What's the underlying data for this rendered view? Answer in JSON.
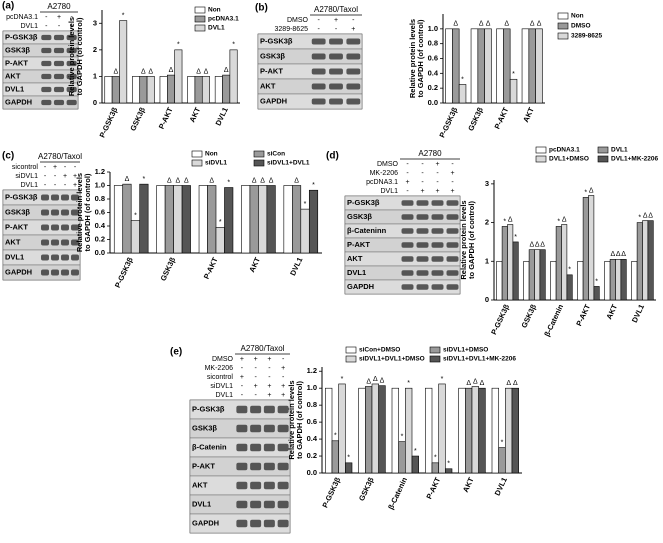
{
  "chart_data": [
    {
      "type": "bar",
      "panel": "(a)",
      "ylabel": [
        "Relative protein levels",
        "to GAPDH (of control)"
      ],
      "categories": [
        "P-GSK3β",
        "GSK3β",
        "P-AKT",
        "AKT",
        "DVL1"
      ],
      "series": [
        {
          "name": "Non",
          "color": "#ffffff",
          "values": [
            1,
            1,
            1,
            1,
            1
          ]
        },
        {
          "name": "pcDNA3.1",
          "color": "#9a9a9a",
          "values": [
            1,
            1,
            1.05,
            1,
            1.05
          ],
          "marks": [
            "Δ",
            "Δ",
            "Δ",
            "Δ",
            "Δ"
          ]
        },
        {
          "name": "DVL1",
          "color": "#d9d9d9",
          "values": [
            3.1,
            1,
            2,
            1,
            2
          ],
          "marks": [
            "*",
            "Δ",
            "*",
            "Δ",
            "*"
          ]
        }
      ],
      "ylim": [
        0,
        3.5
      ],
      "yticks": [
        0,
        1,
        2,
        3
      ]
    },
    {
      "type": "bar",
      "panel": "(b)",
      "ylabel": [
        "Relative protein levels",
        "to GAPDH (of control)"
      ],
      "categories": [
        "P-GSK3β",
        "GSK3β",
        "P-AKT",
        "AKT"
      ],
      "series": [
        {
          "name": "Non",
          "color": "#ffffff",
          "values": [
            1,
            1,
            1,
            1
          ]
        },
        {
          "name": "DMSO",
          "color": "#9a9a9a",
          "values": [
            1,
            1,
            1,
            1
          ],
          "marks": [
            "Δ",
            "Δ",
            "Δ",
            "Δ"
          ]
        },
        {
          "name": "3289-8625",
          "color": "#d9d9d9",
          "values": [
            0.25,
            1,
            0.32,
            1
          ],
          "marks": [
            "*",
            "Δ",
            "*",
            "Δ"
          ]
        }
      ],
      "ylim": [
        0,
        1.2
      ],
      "yticks": [
        {
          "value": 0,
          "label": "0.0"
        },
        {
          "value": 0.2,
          "label": "0.2"
        },
        {
          "value": 0.4,
          "label": "0.4"
        },
        {
          "value": 0.6,
          "label": "0.6"
        },
        {
          "value": 0.8,
          "label": "0.8"
        },
        {
          "value": 1,
          "label": "1.0"
        }
      ]
    },
    {
      "type": "bar",
      "panel": "(c)",
      "ylabel": [
        "Relative protein levels",
        "to GAPDH (of control)"
      ],
      "categories": [
        "P-GSK3β",
        "GSK3β",
        "P-AKT",
        "AKT",
        "DVL1"
      ],
      "series": [
        {
          "name": "Non",
          "color": "#ffffff",
          "values": [
            1,
            1,
            1,
            1,
            1
          ]
        },
        {
          "name": "siCon",
          "color": "#9a9a9a",
          "values": [
            1.02,
            1,
            1,
            1,
            1
          ],
          "marks": [
            "Δ",
            "Δ",
            "Δ",
            "Δ",
            "Δ"
          ]
        },
        {
          "name": "siDVL1",
          "color": "#d9d9d9",
          "values": [
            0.48,
            1,
            0.38,
            1,
            0.65
          ],
          "marks": [
            "*",
            "Δ",
            "*",
            "Δ",
            "*"
          ]
        },
        {
          "name": "siDVL1+DVL1",
          "color": "#555555",
          "values": [
            1.02,
            1,
            0.97,
            1,
            0.93
          ],
          "marks": [
            "*",
            "Δ",
            "*",
            "Δ",
            "*"
          ]
        }
      ],
      "ylim": [
        0,
        1.2
      ],
      "yticks": [
        {
          "value": 0,
          "label": "0.0"
        },
        {
          "value": 0.2,
          "label": "0.2"
        },
        {
          "value": 0.4,
          "label": "0.4"
        },
        {
          "value": 0.6,
          "label": "0.6"
        },
        {
          "value": 0.8,
          "label": "0.8"
        },
        {
          "value": 1,
          "label": "1.0"
        },
        {
          "value": 1.2,
          "label": "1.2"
        }
      ]
    },
    {
      "type": "bar",
      "panel": "(d)",
      "ylabel": [
        "Relative protein levels",
        "to GAPDH (of control)"
      ],
      "categories": [
        "P-GSK3β",
        "GSK3β",
        "β-Catenin",
        "P-AKT",
        "AKT",
        "DVL1"
      ],
      "series": [
        {
          "name": "pcDNA3.1",
          "color": "#ffffff",
          "values": [
            1,
            1,
            1,
            1,
            1,
            1
          ]
        },
        {
          "name": "DVL1",
          "color": "#9a9a9a",
          "values": [
            1.9,
            1.3,
            1.9,
            2.65,
            1.05,
            2
          ],
          "marks": [
            "*",
            "Δ",
            "*",
            "*",
            "Δ",
            "*"
          ]
        },
        {
          "name": "DVL1+DMSO",
          "color": "#d9d9d9",
          "values": [
            1.95,
            1.3,
            1.95,
            2.7,
            1.05,
            2.05
          ],
          "marks": [
            "Δ",
            "Δ",
            "Δ",
            "Δ",
            "Δ",
            "Δ"
          ]
        },
        {
          "name": "DVL1+MK-2206",
          "color": "#555555",
          "values": [
            1.5,
            1.3,
            0.65,
            0.35,
            1.05,
            2.05
          ],
          "marks": [
            "*",
            "Δ",
            "*",
            "*",
            "Δ",
            "Δ"
          ]
        }
      ],
      "ylim": [
        0,
        3.1
      ],
      "yticks": [
        0,
        1,
        2,
        3
      ]
    },
    {
      "type": "bar",
      "panel": "(e)",
      "ylabel": [
        "Relative protein levels",
        "to GAPDH (of control)"
      ],
      "categories": [
        "P-GSK3β",
        "GSK3β",
        "β-Catenin",
        "P-AKT",
        "AKT",
        "DVL1"
      ],
      "series": [
        {
          "name": "siCon+DMSO",
          "color": "#ffffff",
          "values": [
            1,
            1,
            1,
            1,
            1,
            1
          ]
        },
        {
          "name": "siDVL1+DMSO",
          "color": "#9a9a9a",
          "values": [
            0.38,
            1.02,
            0.37,
            0.12,
            1,
            0.3
          ],
          "marks": [
            "*",
            "Δ",
            "*",
            "*",
            "Δ",
            "*"
          ]
        },
        {
          "name": "siDVL1+DVL1+DMSO",
          "color": "#d9d9d9",
          "values": [
            1.05,
            1.05,
            1,
            1.05,
            1.02,
            1
          ],
          "marks": [
            "*",
            "Δ",
            "*",
            "*",
            "Δ",
            "Δ"
          ]
        },
        {
          "name": "siDVL1+DVL1+MK-2206",
          "color": "#555555",
          "values": [
            0.12,
            1.03,
            0.2,
            0.05,
            1,
            1
          ],
          "marks": [
            "*",
            "Δ",
            "*",
            "*",
            "Δ",
            "Δ"
          ]
        }
      ],
      "ylim": [
        0,
        1.25
      ],
      "yticks": [
        {
          "value": 0,
          "label": "0.0"
        },
        {
          "value": 0.2,
          "label": "0.2"
        },
        {
          "value": 0.4,
          "label": "0.4"
        },
        {
          "value": 0.6,
          "label": "0.6"
        },
        {
          "value": 0.8,
          "label": "0.8"
        },
        {
          "value": 1,
          "label": "1.0"
        },
        {
          "value": 1.2,
          "label": "1.2"
        }
      ]
    }
  ],
  "blots": [
    {
      "title": "A2780",
      "conditions": [
        {
          "label": "pcDNA3.1",
          "signs": [
            "-",
            "+",
            "-"
          ]
        },
        {
          "label": "DVL1",
          "signs": [
            "-",
            "-",
            "+"
          ]
        }
      ],
      "bands": [
        "P-GSK3β",
        "GSK3β",
        "P-AKT",
        "AKT",
        "DVL1",
        "GAPDH"
      ]
    },
    {
      "title": "A2780/Taxol",
      "conditions": [
        {
          "label": "DMSO",
          "signs": [
            "-",
            "+",
            "-"
          ]
        },
        {
          "label": "3289-8625",
          "signs": [
            "-",
            "-",
            "+"
          ]
        }
      ],
      "bands": [
        "P-GSK3β",
        "GSK3β",
        "P-AKT",
        "AKT",
        "GAPDH"
      ]
    },
    {
      "title": "A2780/Taxol",
      "conditions": [
        {
          "label": "sicontrol",
          "signs": [
            "-",
            "+",
            "-",
            "-"
          ]
        },
        {
          "label": "siDVL1",
          "signs": [
            "-",
            "-",
            "+",
            "+"
          ]
        },
        {
          "label": "DVL1",
          "signs": [
            "-",
            "-",
            "-",
            "+"
          ]
        }
      ],
      "bands": [
        "P-GSK3β",
        "GSK3β",
        "P-AKT",
        "AKT",
        "DVL1",
        "GAPDH"
      ]
    },
    {
      "title": "A2780",
      "conditions": [
        {
          "label": "DMSO",
          "signs": [
            "-",
            "-",
            "+",
            "-"
          ]
        },
        {
          "label": "MK-2206",
          "signs": [
            "-",
            "-",
            "-",
            "+"
          ]
        },
        {
          "label": "pcDNA3.1",
          "signs": [
            "+",
            "-",
            "-",
            "-"
          ]
        },
        {
          "label": "DVL1",
          "signs": [
            "-",
            "+",
            "+",
            "+"
          ]
        }
      ],
      "bands": [
        "P-GSK3β",
        "GSK3β",
        "β-Cateninn",
        "P-AKT",
        "AKT",
        "DVL1",
        "GAPDH"
      ]
    },
    {
      "title": "A2780/Taxol",
      "conditions": [
        {
          "label": "DMSO",
          "signs": [
            "+",
            "+",
            "+",
            "-"
          ]
        },
        {
          "label": "MK-2206",
          "signs": [
            "-",
            "-",
            "-",
            "+"
          ]
        },
        {
          "label": "sicontrol",
          "signs": [
            "+",
            "-",
            "-",
            "-"
          ]
        },
        {
          "label": "siDVL1",
          "signs": [
            "-",
            "+",
            "+",
            "+"
          ]
        },
        {
          "label": "DVL1",
          "signs": [
            "-",
            "-",
            "+",
            "+"
          ]
        }
      ],
      "bands": [
        "P-GSK3β",
        "GSK3β",
        "β-Catenin",
        "P-AKT",
        "AKT",
        "DVL1",
        "GAPDH"
      ]
    }
  ]
}
